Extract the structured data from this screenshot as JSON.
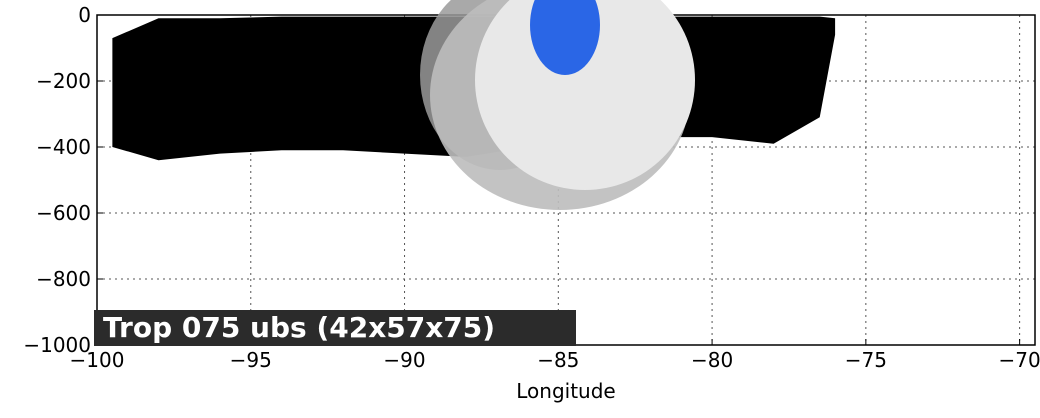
{
  "chart_data": {
    "type": "range",
    "x_label": "Longitude",
    "annotation": "Trop 075 ubs (42x57x75)",
    "color": "#000000",
    "grid": true,
    "x": [
      -99.5,
      -98,
      -96,
      -94,
      -92,
      -90,
      -88,
      -86,
      -84,
      -82,
      -80,
      -78,
      -76.5,
      -76
    ],
    "high": [
      -70,
      -10,
      -10,
      -5,
      -5,
      -5,
      -5,
      -5,
      -5,
      -5,
      -5,
      -5,
      -5,
      -10
    ],
    "low": [
      -400,
      -440,
      -420,
      -410,
      -410,
      -420,
      -430,
      -400,
      -390,
      -370,
      -370,
      -390,
      -310,
      -60
    ],
    "xlim": [
      -100,
      -69.5
    ],
    "ylim": [
      -1000,
      0
    ],
    "xticks": [
      {
        "value": -100,
        "label": "−100"
      },
      {
        "value": -95,
        "label": "−95"
      },
      {
        "value": -90,
        "label": "−90"
      },
      {
        "value": -85,
        "label": "−85"
      },
      {
        "value": -80,
        "label": "−80"
      },
      {
        "value": -75,
        "label": "−75"
      },
      {
        "value": -70,
        "label": "−70"
      }
    ],
    "yticks": [
      0,
      {
        "value": -200,
        "label": "−200"
      },
      {
        "value": -400,
        "label": "−400"
      },
      {
        "value": -600,
        "label": "−600"
      },
      {
        "value": -800,
        "label": "−800"
      },
      {
        "value": -1000,
        "label": "−1000"
      }
    ]
  }
}
